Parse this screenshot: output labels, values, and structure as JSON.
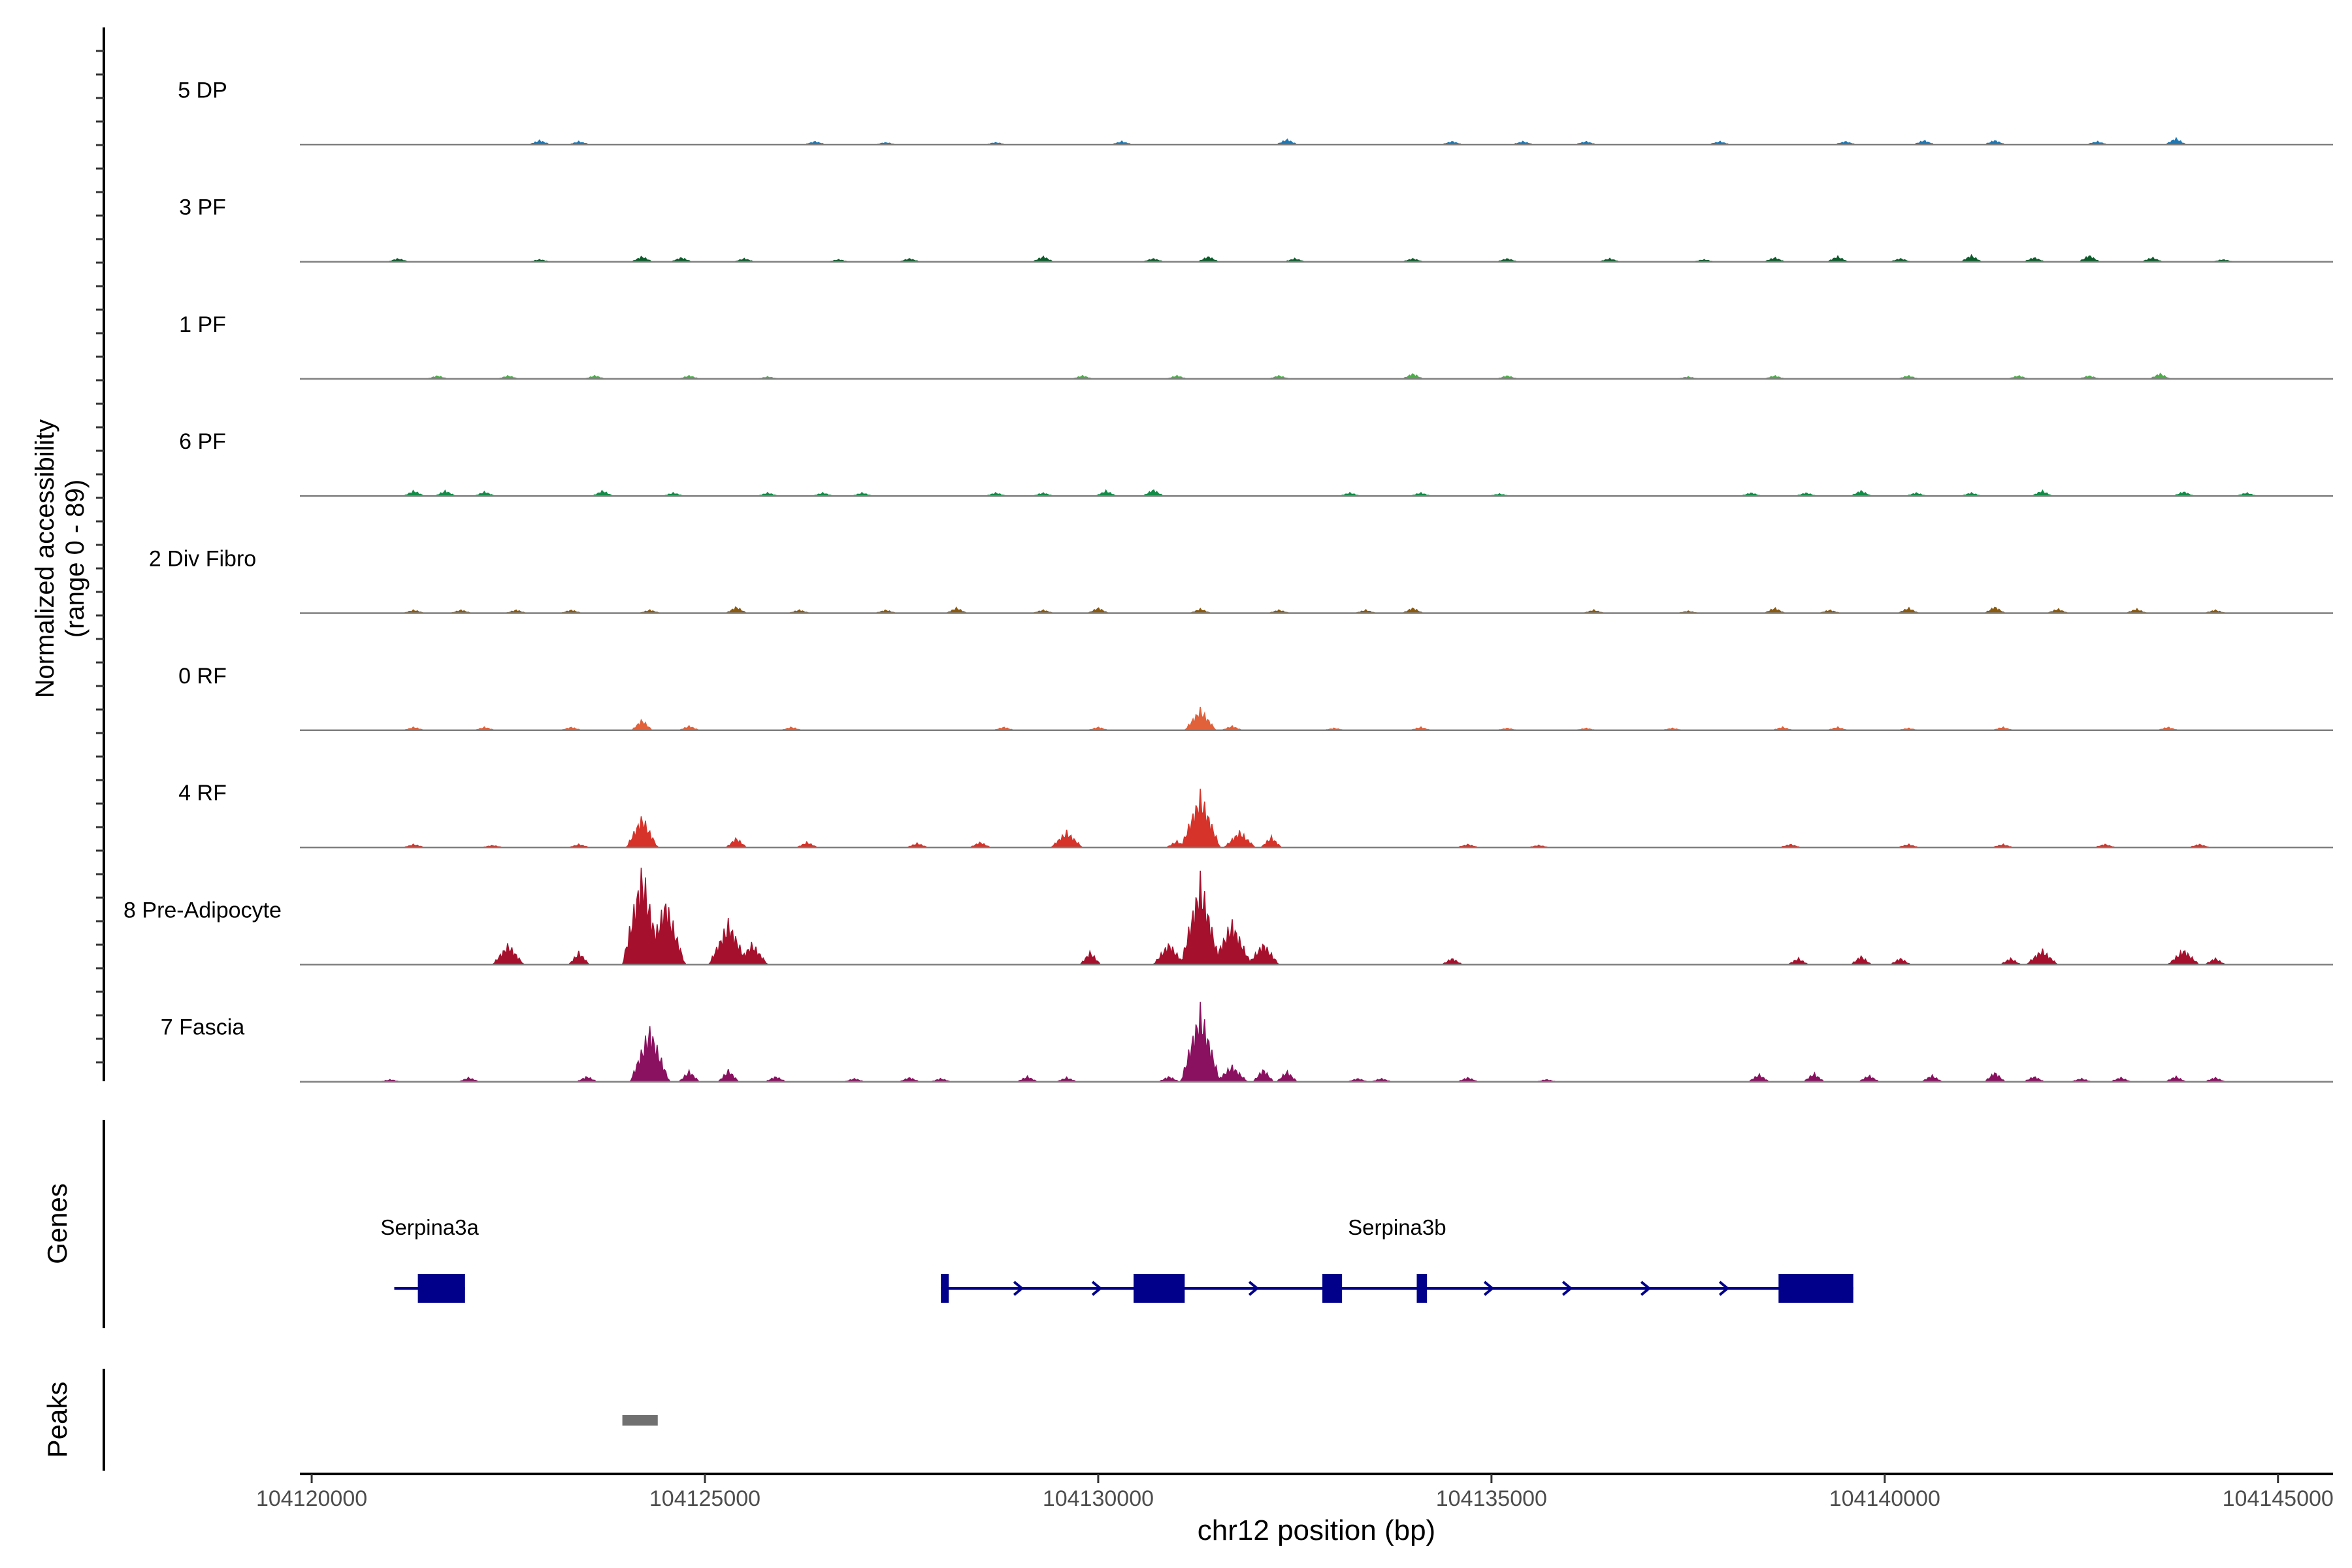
{
  "chart_data": {
    "type": "area",
    "title": "",
    "ylabel_line1": "Normalized accessibility",
    "ylabel_line2": "(range 0 - 89)",
    "y_range": [
      0,
      89
    ],
    "xlabel": "chr12 position (bp)",
    "xlim": [
      104119850,
      104145700
    ],
    "x_ticks": [
      104120000,
      104125000,
      104130000,
      104135000,
      104140000,
      104145000
    ],
    "x_tick_labels": [
      "104120000",
      "104125000",
      "104130000",
      "104135000",
      "104140000",
      "104145000"
    ],
    "tracks": [
      {
        "name": "5 DP",
        "color": "#1f78b4",
        "peaks": [
          [
            104122900,
            4
          ],
          [
            104123400,
            3
          ],
          [
            104126400,
            3
          ],
          [
            104127300,
            2
          ],
          [
            104128700,
            2
          ],
          [
            104130300,
            3
          ],
          [
            104132400,
            5
          ],
          [
            104134500,
            3
          ],
          [
            104135400,
            3
          ],
          [
            104136200,
            3
          ],
          [
            104137900,
            3
          ],
          [
            104139500,
            3
          ],
          [
            104140500,
            4
          ],
          [
            104141400,
            4
          ],
          [
            104142700,
            3
          ],
          [
            104143700,
            6
          ]
        ]
      },
      {
        "name": "3 PF",
        "color": "#0b5d2a",
        "peaks": [
          [
            104121100,
            3
          ],
          [
            104122900,
            2
          ],
          [
            104124200,
            5
          ],
          [
            104124700,
            4
          ],
          [
            104125500,
            3
          ],
          [
            104126700,
            2
          ],
          [
            104127600,
            3
          ],
          [
            104129300,
            5
          ],
          [
            104130700,
            3
          ],
          [
            104131400,
            5
          ],
          [
            104132500,
            3
          ],
          [
            104134000,
            3
          ],
          [
            104135200,
            3
          ],
          [
            104136500,
            3
          ],
          [
            104137700,
            2
          ],
          [
            104138600,
            4
          ],
          [
            104139400,
            5
          ],
          [
            104140200,
            3
          ],
          [
            104141100,
            6
          ],
          [
            104141900,
            4
          ],
          [
            104142600,
            6
          ],
          [
            104143400,
            4
          ],
          [
            104144300,
            2
          ]
        ]
      },
      {
        "name": "1 PF",
        "color": "#4dae4a",
        "peaks": [
          [
            104121600,
            3
          ],
          [
            104122500,
            3
          ],
          [
            104123600,
            3
          ],
          [
            104124800,
            3
          ],
          [
            104125800,
            2
          ],
          [
            104129800,
            3
          ],
          [
            104131000,
            3
          ],
          [
            104132300,
            3
          ],
          [
            104134000,
            5
          ],
          [
            104135200,
            3
          ],
          [
            104137500,
            2
          ],
          [
            104138600,
            3
          ],
          [
            104140300,
            3
          ],
          [
            104141700,
            3
          ],
          [
            104142600,
            3
          ],
          [
            104143500,
            5
          ]
        ]
      },
      {
        "name": "6 PF",
        "color": "#138c48",
        "peaks": [
          [
            104121300,
            5
          ],
          [
            104121700,
            5
          ],
          [
            104122200,
            4
          ],
          [
            104123700,
            5
          ],
          [
            104124600,
            3
          ],
          [
            104125800,
            3
          ],
          [
            104126500,
            3
          ],
          [
            104127000,
            3
          ],
          [
            104128700,
            3
          ],
          [
            104129300,
            3
          ],
          [
            104130100,
            5
          ],
          [
            104130700,
            6
          ],
          [
            104133200,
            3
          ],
          [
            104134100,
            3
          ],
          [
            104135100,
            2
          ],
          [
            104138300,
            3
          ],
          [
            104139000,
            3
          ],
          [
            104139700,
            5
          ],
          [
            104140400,
            3
          ],
          [
            104141100,
            3
          ],
          [
            104142000,
            5
          ],
          [
            104143800,
            4
          ],
          [
            104144600,
            3
          ]
        ]
      },
      {
        "name": "2 Div Fibro",
        "color": "#8a5a10",
        "peaks": [
          [
            104121300,
            3
          ],
          [
            104121900,
            3
          ],
          [
            104122600,
            3
          ],
          [
            104123300,
            3
          ],
          [
            104124300,
            3
          ],
          [
            104125400,
            6
          ],
          [
            104126200,
            3
          ],
          [
            104127300,
            3
          ],
          [
            104128200,
            5
          ],
          [
            104129300,
            3
          ],
          [
            104130000,
            5
          ],
          [
            104131300,
            4
          ],
          [
            104132300,
            3
          ],
          [
            104133400,
            3
          ],
          [
            104134000,
            5
          ],
          [
            104136300,
            3
          ],
          [
            104137500,
            2
          ],
          [
            104138600,
            5
          ],
          [
            104139300,
            3
          ],
          [
            104140300,
            5
          ],
          [
            104141400,
            6
          ],
          [
            104142200,
            4
          ],
          [
            104143200,
            4
          ],
          [
            104144200,
            3
          ]
        ]
      },
      {
        "name": "0 RF",
        "color": "#e0613a",
        "peaks": [
          [
            104121300,
            3
          ],
          [
            104122200,
            3
          ],
          [
            104123300,
            3
          ],
          [
            104124200,
            10
          ],
          [
            104124800,
            4
          ],
          [
            104126100,
            3
          ],
          [
            104128800,
            3
          ],
          [
            104130000,
            3
          ],
          [
            104131300,
            20
          ],
          [
            104131700,
            4
          ],
          [
            104133000,
            2
          ],
          [
            104134100,
            3
          ],
          [
            104135200,
            2
          ],
          [
            104136200,
            2
          ],
          [
            104137300,
            2
          ],
          [
            104138700,
            3
          ],
          [
            104139400,
            3
          ],
          [
            104140300,
            2
          ],
          [
            104141500,
            3
          ],
          [
            104143600,
            3
          ]
        ]
      },
      {
        "name": "4 RF",
        "color": "#d6332a",
        "peaks": [
          [
            104121300,
            3
          ],
          [
            104122300,
            2
          ],
          [
            104123400,
            3
          ],
          [
            104124200,
            29
          ],
          [
            104125400,
            9
          ],
          [
            104126300,
            5
          ],
          [
            104127700,
            4
          ],
          [
            104128500,
            5
          ],
          [
            104129600,
            15
          ],
          [
            104131000,
            6
          ],
          [
            104131300,
            50
          ],
          [
            104131800,
            15
          ],
          [
            104132200,
            10
          ],
          [
            104134700,
            3
          ],
          [
            104135600,
            2
          ],
          [
            104138800,
            3
          ],
          [
            104140300,
            3
          ],
          [
            104141500,
            3
          ],
          [
            104142800,
            3
          ],
          [
            104144000,
            3
          ]
        ]
      },
      {
        "name": "8 Pre-Adipocyte",
        "color": "#a5102d",
        "peaks": [
          [
            104122500,
            19
          ],
          [
            104123400,
            12
          ],
          [
            104124200,
            89
          ],
          [
            104124500,
            60
          ],
          [
            104125300,
            40
          ],
          [
            104125600,
            20
          ],
          [
            104129900,
            12
          ],
          [
            104130900,
            20
          ],
          [
            104131300,
            80
          ],
          [
            104131700,
            40
          ],
          [
            104132100,
            20
          ],
          [
            104134500,
            6
          ],
          [
            104138900,
            6
          ],
          [
            104139700,
            8
          ],
          [
            104140200,
            6
          ],
          [
            104141600,
            6
          ],
          [
            104142000,
            14
          ],
          [
            104143800,
            14
          ],
          [
            104144200,
            6
          ]
        ]
      },
      {
        "name": "7 Fascia",
        "color": "#8a1060",
        "peaks": [
          [
            104121000,
            2
          ],
          [
            104122000,
            4
          ],
          [
            104123500,
            5
          ],
          [
            104124300,
            50
          ],
          [
            104124800,
            10
          ],
          [
            104125300,
            11
          ],
          [
            104125900,
            5
          ],
          [
            104126900,
            3
          ],
          [
            104127600,
            4
          ],
          [
            104128000,
            3
          ],
          [
            104129100,
            5
          ],
          [
            104129600,
            4
          ],
          [
            104130900,
            5
          ],
          [
            104131300,
            68
          ],
          [
            104131700,
            15
          ],
          [
            104132100,
            12
          ],
          [
            104132400,
            10
          ],
          [
            104133300,
            3
          ],
          [
            104133600,
            3
          ],
          [
            104134700,
            4
          ],
          [
            104135700,
            2
          ],
          [
            104138400,
            7
          ],
          [
            104139100,
            8
          ],
          [
            104139800,
            6
          ],
          [
            104140600,
            6
          ],
          [
            104141400,
            9
          ],
          [
            104141900,
            5
          ],
          [
            104142500,
            3
          ],
          [
            104143000,
            4
          ],
          [
            104143700,
            5
          ],
          [
            104144200,
            4
          ]
        ]
      }
    ],
    "genes_label": "Genes",
    "genes": [
      {
        "name": "Serpina3a",
        "start": 104121050,
        "end": 104121950,
        "strand": "+",
        "exons": [
          [
            104121350,
            104121950
          ]
        ]
      },
      {
        "name": "Serpina3b",
        "start": 104128000,
        "end": 104139600,
        "strand": "+",
        "exons": [
          [
            104128000,
            104128100
          ],
          [
            104130450,
            104131100
          ],
          [
            104132850,
            104133100
          ],
          [
            104134050,
            104134180
          ],
          [
            104138650,
            104139600
          ]
        ]
      }
    ],
    "peaks_label": "Peaks",
    "peak_regions": [
      [
        104123950,
        104124400
      ]
    ],
    "colors": {
      "gene": "#00008b",
      "peak_region": "#707070",
      "baseline": "#7f7f7f",
      "axis": "#000000",
      "tick_label": "#4d4d4d"
    }
  }
}
